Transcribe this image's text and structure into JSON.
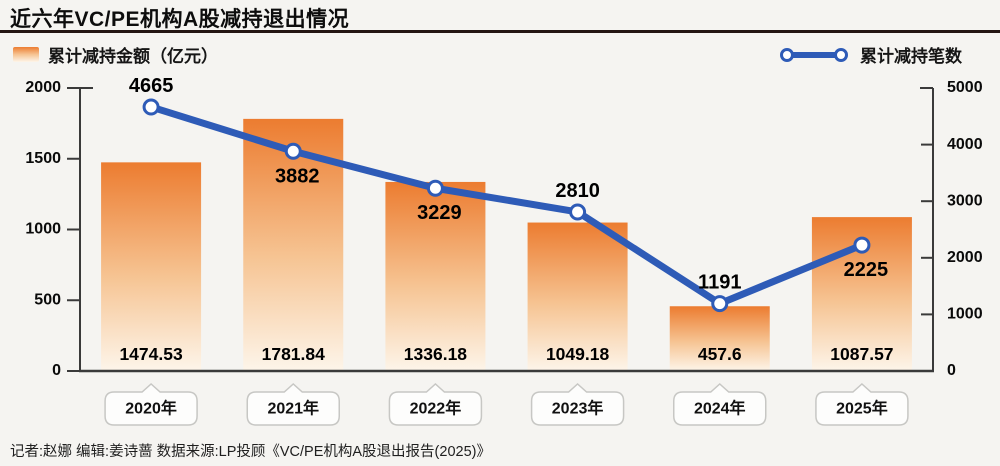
{
  "title": "近六年VC/PE机构A股减持退出情况",
  "legend": {
    "bar_label": "累计减持金额（亿元）",
    "line_label": "累计减持笔数"
  },
  "footer": "记者:赵娜  编辑:姜诗蔷  数据来源:LP投顾《VC/PE机构A股退出报告(2025)》",
  "colors": {
    "background": "#f5f4f1",
    "title_rule": "#241512",
    "bar_top": "#ec7c30",
    "bar_mid": "#f6c493",
    "bar_bottom": "#fdf5ea",
    "line": "#2e5bb7",
    "marker_fill": "#ffffff",
    "axis": "#3a3a3a",
    "label_text": "#000000",
    "bubble_fill": "#fdfdfc",
    "bubble_border": "#c7c7c4"
  },
  "chart_data": {
    "type": "bar+line",
    "title": "近六年VC/PE机构A股减持退出情况",
    "categories": [
      "2020年",
      "2021年",
      "2022年",
      "2023年",
      "2024年",
      "2025年"
    ],
    "series": [
      {
        "name": "累计减持金额（亿元）",
        "type": "bar",
        "axis": "left",
        "values": [
          1474.53,
          1781.84,
          1336.18,
          1049.18,
          457.6,
          1087.57
        ]
      },
      {
        "name": "累计减持笔数",
        "type": "line",
        "axis": "right",
        "values": [
          4665,
          3882,
          3229,
          2810,
          1191,
          2225
        ],
        "label_positions": [
          "above",
          "below",
          "below",
          "above",
          "above",
          "below"
        ]
      }
    ],
    "left_axis": {
      "min": 0,
      "max": 2000,
      "ticks": [
        0,
        500,
        1000,
        1500,
        2000
      ]
    },
    "right_axis": {
      "min": 0,
      "max": 5000,
      "ticks": [
        0,
        1000,
        2000,
        3000,
        4000,
        5000
      ]
    },
    "grid": false,
    "legend_position": "top"
  }
}
